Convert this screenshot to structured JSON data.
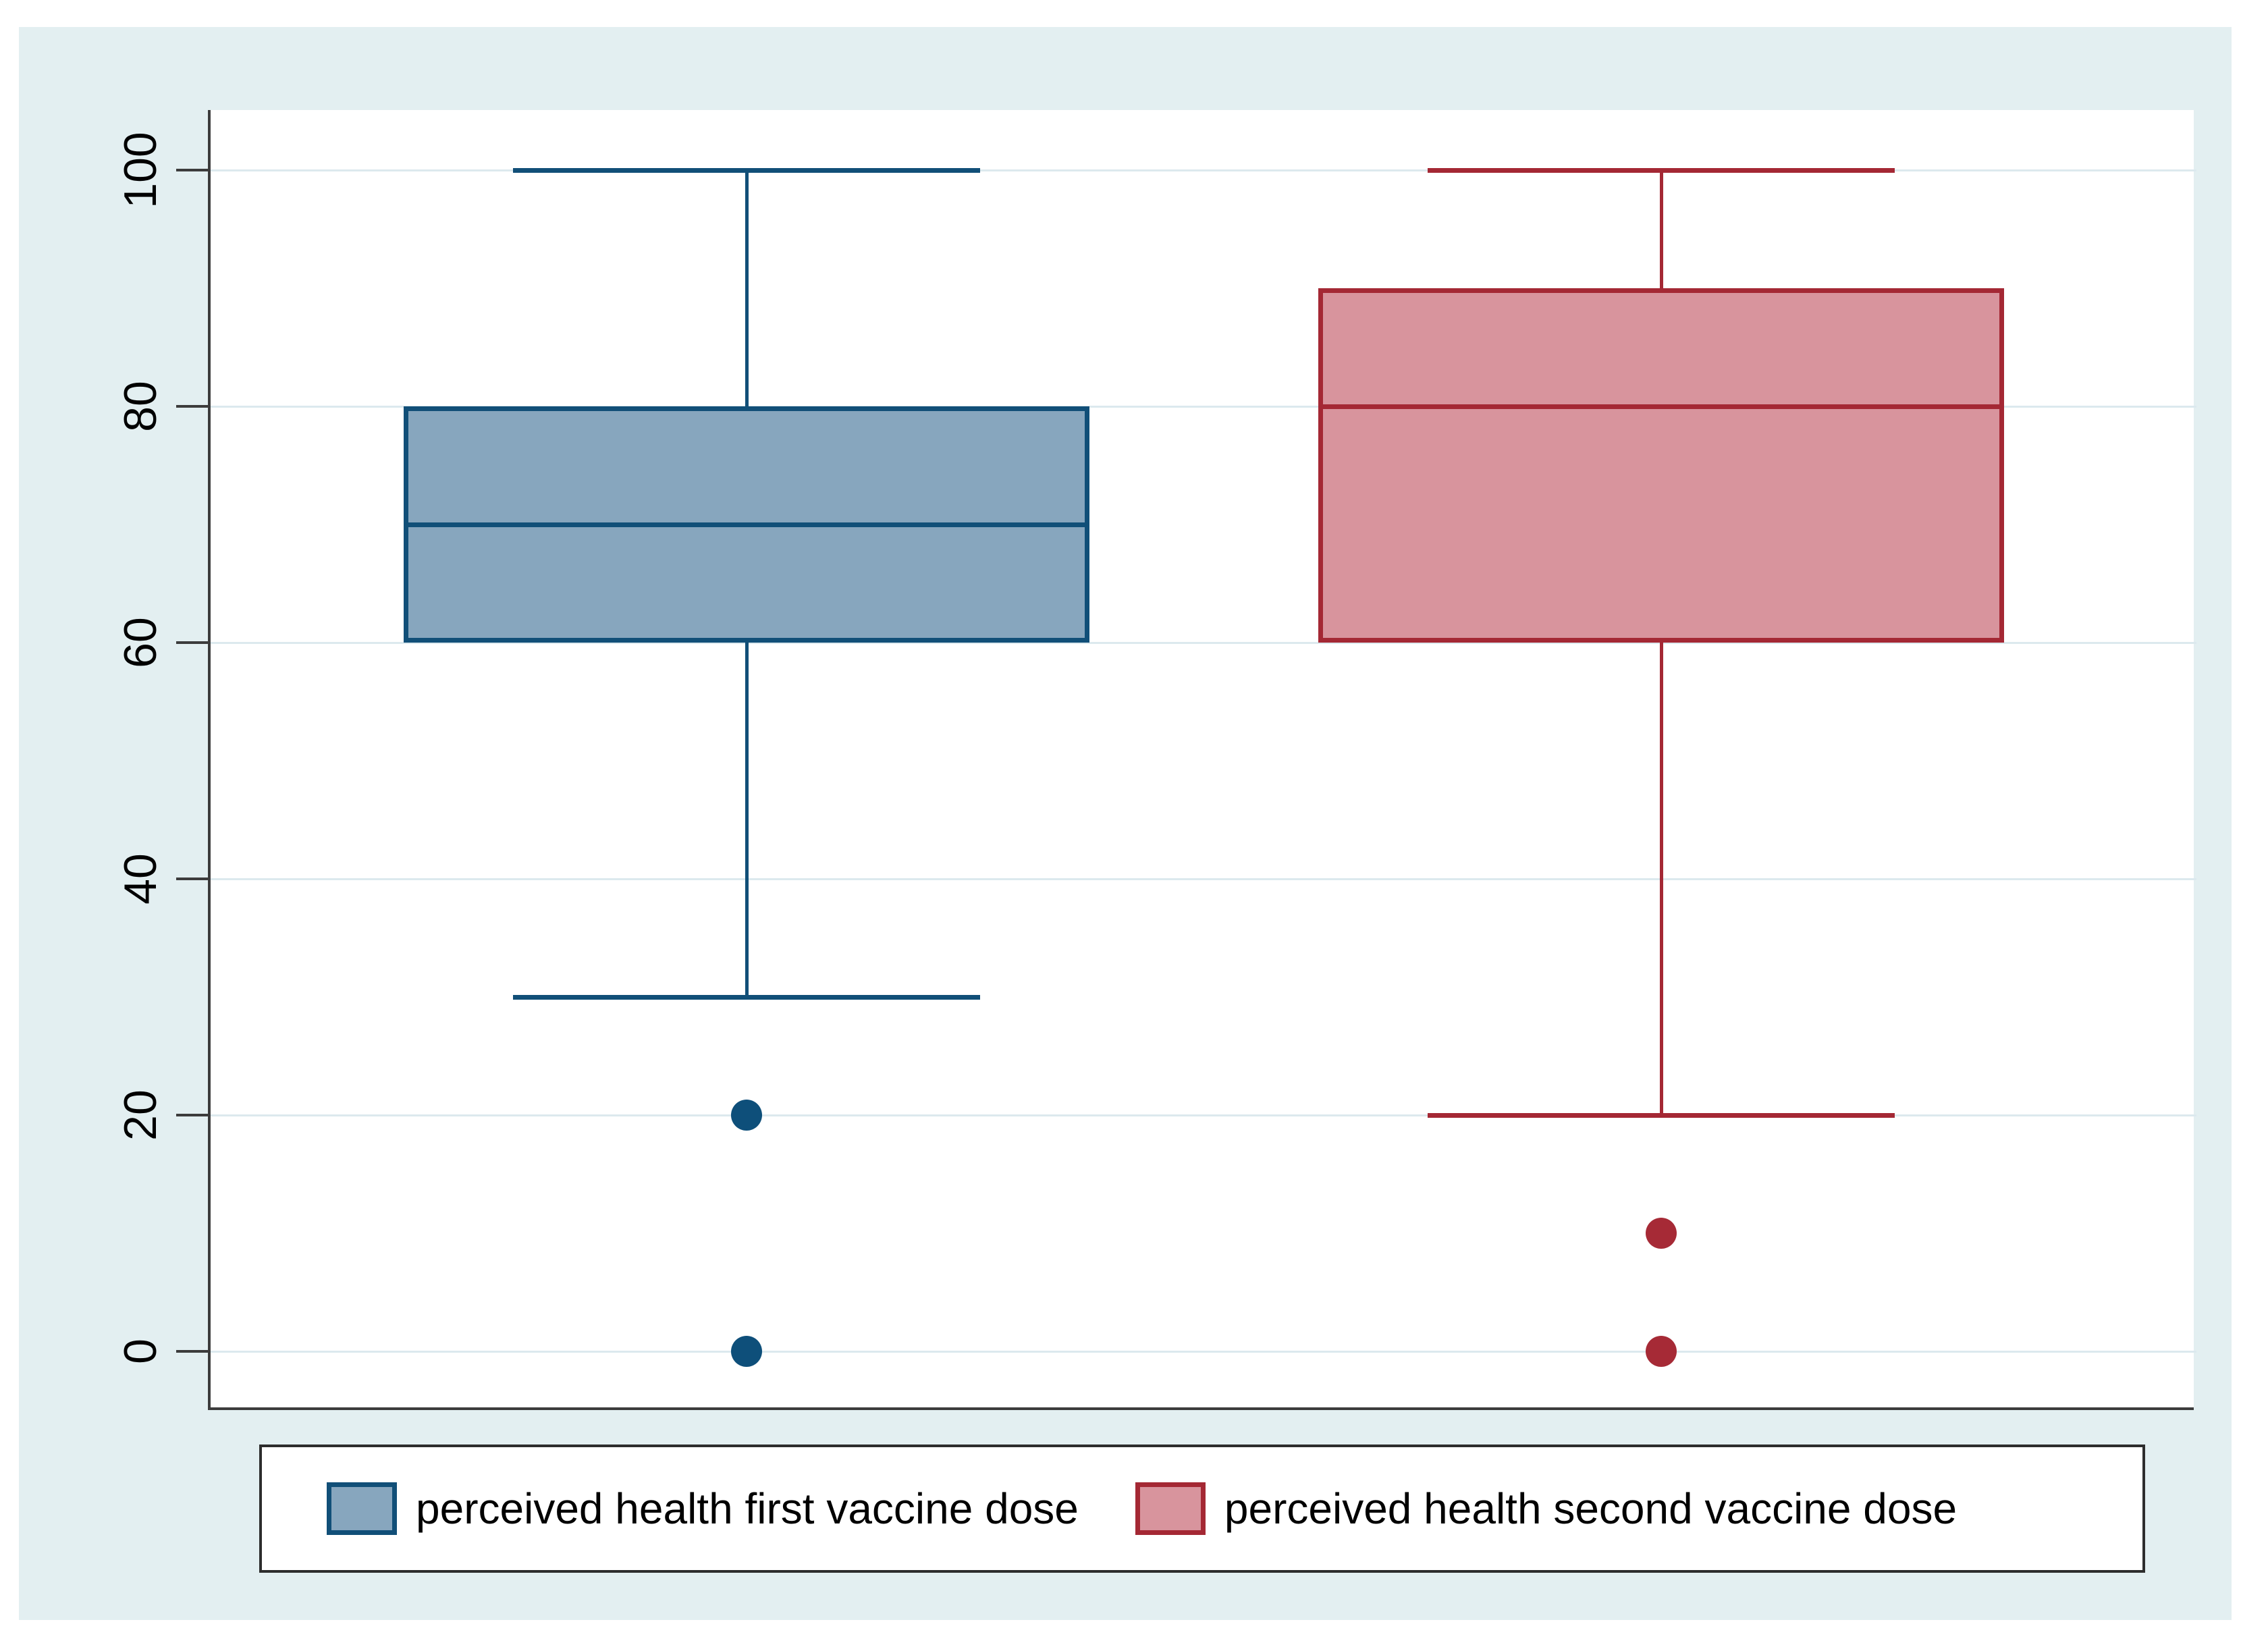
{
  "chart_data": {
    "type": "boxplot",
    "orientation": "vertical",
    "title": "",
    "y_axis": {
      "min": 0,
      "max": 100,
      "ticks": [
        0,
        20,
        40,
        60,
        80,
        100
      ],
      "tick_labels": [
        "0",
        "20",
        "40",
        "60",
        "80",
        "100"
      ],
      "grid": true
    },
    "series": [
      {
        "name": "perceived health first vaccine dose",
        "box": {
          "lower_whisker": 30,
          "q1": 60,
          "median": 70,
          "q3": 80,
          "upper_whisker": 100,
          "outliers": [
            20,
            0
          ]
        },
        "fill": "#87A6BE",
        "stroke": "#114F78",
        "outlier_color": "#0E4F7A"
      },
      {
        "name": "perceived health second vaccine dose",
        "box": {
          "lower_whisker": 20,
          "q1": 60,
          "median": 80,
          "q3": 90,
          "upper_whisker": 100,
          "outliers": [
            10,
            0
          ]
        },
        "fill": "#D8949D",
        "stroke": "#A42834",
        "outlier_color": "#A62A36"
      }
    ],
    "legend": {
      "position": "bottom",
      "entries": [
        "perceived health first vaccine dose",
        "perceived health second vaccine dose"
      ]
    }
  },
  "colors": {
    "panel_background": "#E3EFF1",
    "plot_background": "#FFFFFF",
    "axis_line": "#3C3C3C",
    "gridline": "#DCE9EE",
    "legend_border": "#2D2D2D",
    "text": "#000000"
  }
}
